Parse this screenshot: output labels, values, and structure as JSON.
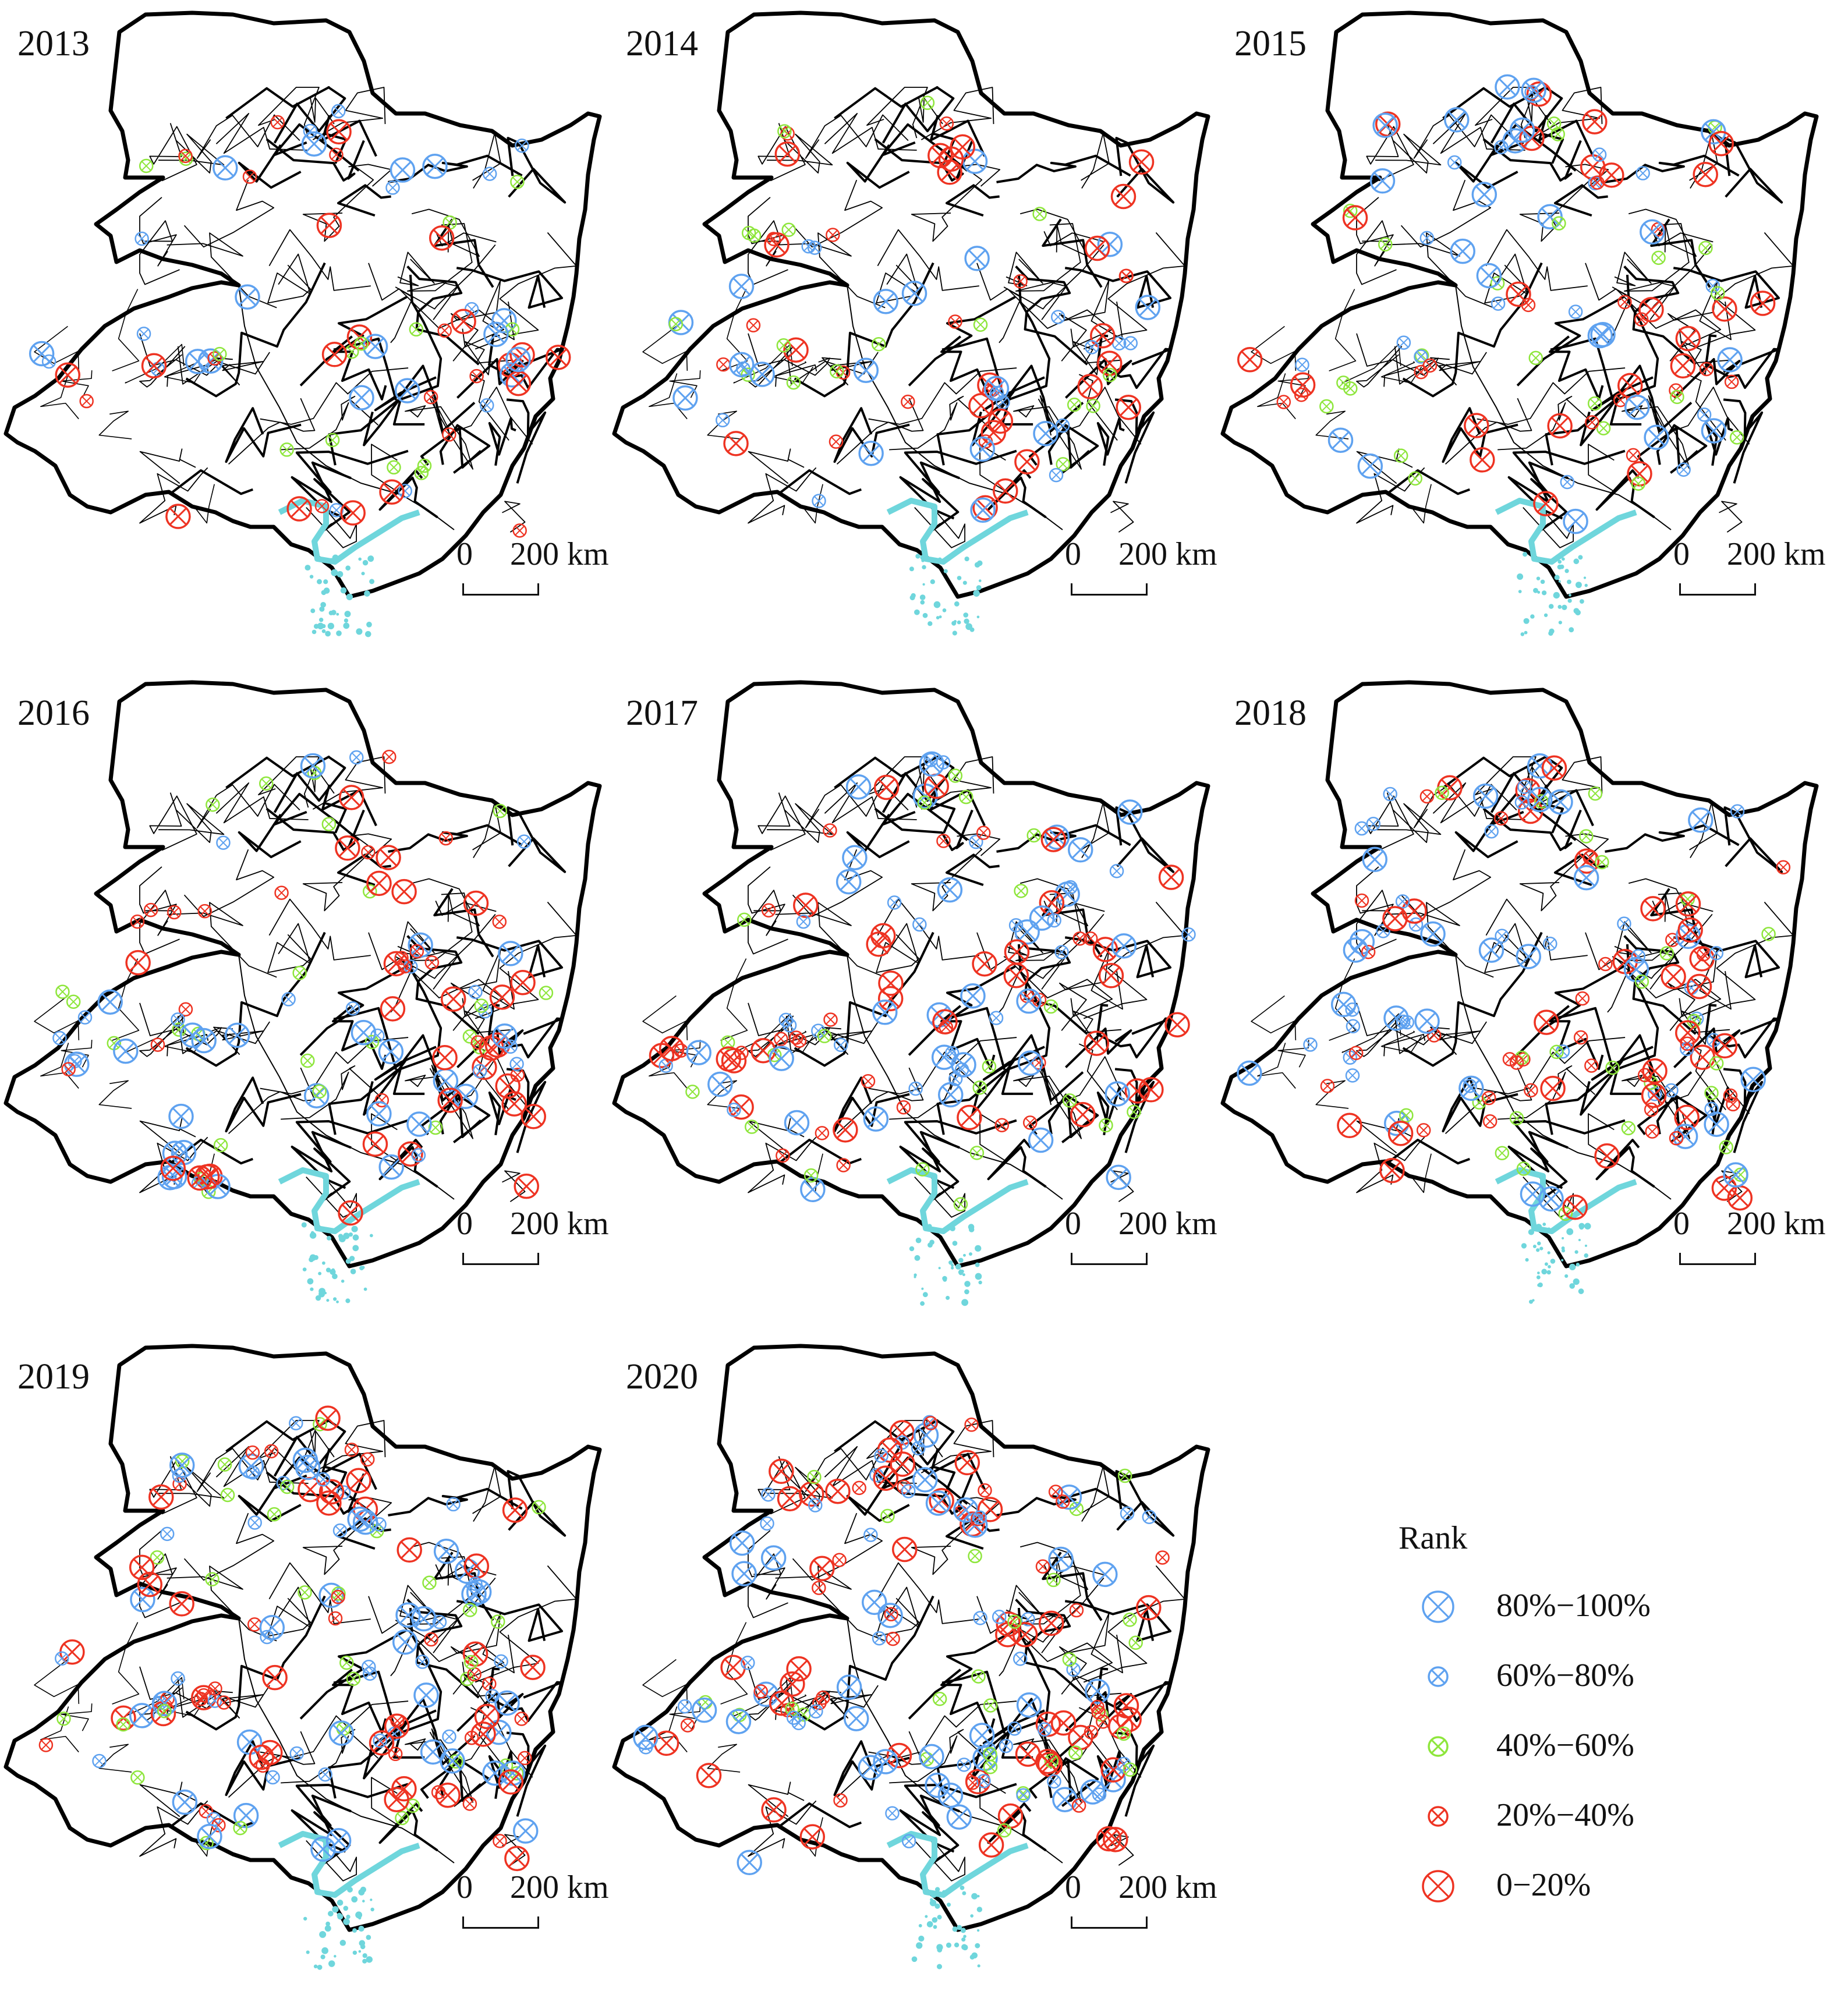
{
  "panels": [
    {
      "year": "2013"
    },
    {
      "year": "2014"
    },
    {
      "year": "2015"
    },
    {
      "year": "2016"
    },
    {
      "year": "2017"
    },
    {
      "year": "2018"
    },
    {
      "year": "2019"
    },
    {
      "year": "2020"
    }
  ],
  "scale_bar": {
    "zero": "0",
    "label": "200 km"
  },
  "legend": {
    "title": "Rank",
    "items": [
      {
        "label": "80%−100%",
        "color": "#5fa2f0",
        "size": "large"
      },
      {
        "label": "60%−80%",
        "color": "#5fa2f0",
        "size": "small"
      },
      {
        "label": "40%−60%",
        "color": "#8ee63c",
        "size": "small"
      },
      {
        "label": "20%−40%",
        "color": "#ee3322",
        "size": "small"
      },
      {
        "label": "0−20%",
        "color": "#ee3322",
        "size": "large"
      }
    ]
  },
  "colors": {
    "boundary": "#000000",
    "coast": "#6fd6dc"
  }
}
